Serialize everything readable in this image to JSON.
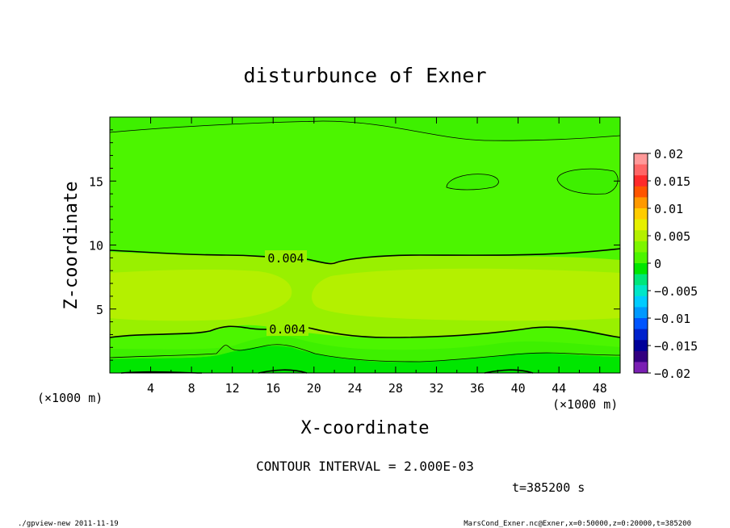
{
  "chart_data": {
    "type": "heatmap",
    "title": "disturbunce of Exner",
    "xlabel": "X-coordinate",
    "ylabel": "Z-coordinate",
    "x_unit_left": "(×1000 m)",
    "x_unit_right": "(×1000 m)",
    "xlim": [
      0,
      50
    ],
    "ylim": [
      0,
      20
    ],
    "x_ticks": [
      4,
      8,
      12,
      16,
      20,
      24,
      28,
      32,
      36,
      40,
      44,
      48
    ],
    "y_ticks": [
      5,
      10,
      15
    ],
    "contour_interval_label": "CONTOUR INTERVAL = 2.000E-03",
    "time_label": "t=385200 s",
    "contour_labels": [
      {
        "text": "0.004",
        "x": 17.5,
        "z": 9.1
      },
      {
        "text": "0.004",
        "x": 18,
        "z": 3.5
      }
    ],
    "colorbar": {
      "ticks": [
        "0.02",
        "0.015",
        "0.01",
        "0.005",
        "0",
        "−0.005",
        "−0.01",
        "−0.015",
        "−0.02"
      ],
      "colors": [
        "#ff9999",
        "#ff6666",
        "#ff2a2a",
        "#ff5500",
        "#ff9900",
        "#ffcc00",
        "#e6f000",
        "#b4f000",
        "#7df500",
        "#4cf500",
        "#00e600",
        "#00e67a",
        "#00e6c8",
        "#00ccff",
        "#0099ff",
        "#0055ff",
        "#0022cc",
        "#000099",
        "#330080",
        "#7a1fb3"
      ]
    },
    "fields": {
      "band_0": "0 to 0.002",
      "band_1": "0.002 to 0.004",
      "band_2": "0.004 to 0.006"
    },
    "band_colors": {
      "low": "#00e600",
      "mid": "#4cf500",
      "high": "#99f000",
      "peak": "#b4f000"
    }
  },
  "footer": {
    "left": "./gpview-new  2011-11-19",
    "right": "MarsCond_Exner.nc@Exner,x=0:50000,z=0:20000,t=385200"
  }
}
